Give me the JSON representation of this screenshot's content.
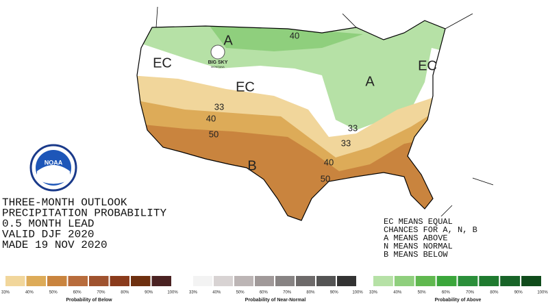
{
  "title_lines": [
    "THREE-MONTH OUTLOOK",
    "PRECIPITATION PROBABILITY",
    "0.5 MONTH LEAD",
    "VALID DJF 2020",
    "MADE 19 NOV 2020"
  ],
  "key_lines": [
    "EC MEANS EQUAL",
    "CHANCES FOR A, N, B",
    "A MEANS ABOVE",
    "N MEANS NORMAL",
    "B MEANS BELOW"
  ],
  "logos": {
    "noaa": "NOAA",
    "big_sky": "BIG SKY",
    "montana": "MONTANA"
  },
  "map_labels": [
    "A",
    "EC",
    "40",
    "EC",
    "A",
    "EC",
    "33",
    "40",
    "50",
    "33",
    "33",
    "B",
    "40",
    "50"
  ],
  "legends": [
    {
      "name": "Probability of Below",
      "labels": [
        "33%",
        "40%",
        "50%",
        "60%",
        "70%",
        "80%",
        "90%",
        "100%"
      ],
      "colors": [
        "#f1d69b",
        "#ddab58",
        "#c9843e",
        "#b86c3c",
        "#9f522e",
        "#8a3b1c",
        "#6e3010",
        "#4a2222"
      ]
    },
    {
      "name": "Probability of Near-Normal",
      "labels": [
        "33%",
        "40%",
        "50%",
        "60%",
        "70%",
        "80%",
        "90%",
        "100%"
      ],
      "colors": [
        "#f3f3f3",
        "#d8d3d3",
        "#bcb5b5",
        "#a09999",
        "#878383",
        "#6d6a6a",
        "#545454",
        "#333333"
      ]
    },
    {
      "name": "Probability of Above",
      "labels": [
        "33%",
        "40%",
        "50%",
        "60%",
        "70%",
        "80%",
        "90%",
        "100%"
      ],
      "colors": [
        "#b6e1a6",
        "#8fcf7d",
        "#60b84f",
        "#3ba63b",
        "#2b8f3a",
        "#1f7a2f",
        "#186428",
        "#104b1b"
      ]
    }
  ]
}
